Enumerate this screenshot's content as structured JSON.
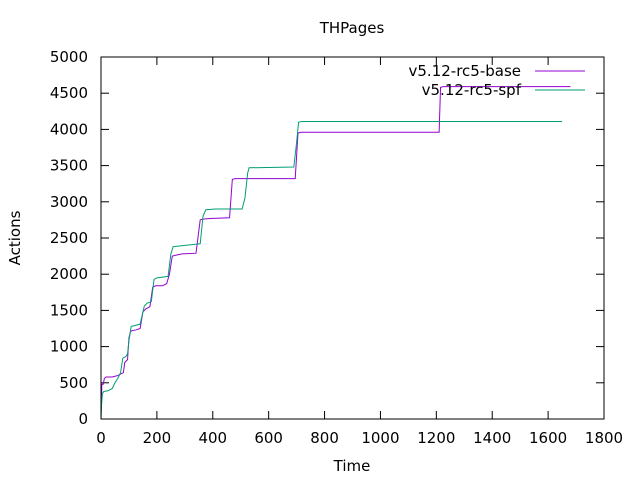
{
  "chart_data": {
    "type": "line",
    "title": "THPages",
    "xlabel": "Time",
    "ylabel": "Actions",
    "xlim": [
      0,
      1800
    ],
    "ylim": [
      0,
      5000
    ],
    "xticks": [
      0,
      200,
      400,
      600,
      800,
      1000,
      1200,
      1400,
      1600,
      1800
    ],
    "yticks": [
      0,
      500,
      1000,
      1500,
      2000,
      2500,
      3000,
      3500,
      4000,
      4500,
      5000
    ],
    "grid": false,
    "legend": "top-right",
    "series": [
      {
        "name": "v5.12-rc5-base",
        "color": "#9400d3",
        "points": [
          [
            0,
            0
          ],
          [
            3,
            480
          ],
          [
            8,
            480
          ],
          [
            12,
            560
          ],
          [
            18,
            580
          ],
          [
            40,
            580
          ],
          [
            50,
            590
          ],
          [
            60,
            600
          ],
          [
            70,
            620
          ],
          [
            80,
            640
          ],
          [
            85,
            780
          ],
          [
            95,
            820
          ],
          [
            100,
            1120
          ],
          [
            105,
            1200
          ],
          [
            110,
            1220
          ],
          [
            125,
            1230
          ],
          [
            140,
            1250
          ],
          [
            150,
            1480
          ],
          [
            160,
            1520
          ],
          [
            175,
            1550
          ],
          [
            185,
            1820
          ],
          [
            195,
            1840
          ],
          [
            220,
            1840
          ],
          [
            235,
            1870
          ],
          [
            245,
            2000
          ],
          [
            255,
            2250
          ],
          [
            265,
            2260
          ],
          [
            290,
            2280
          ],
          [
            340,
            2290
          ],
          [
            355,
            2750
          ],
          [
            365,
            2760
          ],
          [
            390,
            2770
          ],
          [
            460,
            2780
          ],
          [
            470,
            3310
          ],
          [
            480,
            3320
          ],
          [
            695,
            3320
          ],
          [
            705,
            3950
          ],
          [
            715,
            3960
          ],
          [
            1210,
            3960
          ],
          [
            1215,
            4580
          ],
          [
            1225,
            4590
          ],
          [
            1680,
            4590
          ]
        ]
      },
      {
        "name": "v5.12-rc5-spf",
        "color": "#009e73",
        "points": [
          [
            0,
            0
          ],
          [
            2,
            200
          ],
          [
            5,
            350
          ],
          [
            10,
            380
          ],
          [
            25,
            390
          ],
          [
            40,
            420
          ],
          [
            50,
            500
          ],
          [
            60,
            560
          ],
          [
            70,
            640
          ],
          [
            78,
            840
          ],
          [
            88,
            860
          ],
          [
            95,
            900
          ],
          [
            100,
            1080
          ],
          [
            108,
            1280
          ],
          [
            120,
            1290
          ],
          [
            140,
            1310
          ],
          [
            155,
            1560
          ],
          [
            165,
            1600
          ],
          [
            180,
            1620
          ],
          [
            190,
            1930
          ],
          [
            200,
            1950
          ],
          [
            240,
            1970
          ],
          [
            250,
            2280
          ],
          [
            258,
            2380
          ],
          [
            280,
            2390
          ],
          [
            330,
            2410
          ],
          [
            355,
            2420
          ],
          [
            365,
            2800
          ],
          [
            375,
            2890
          ],
          [
            410,
            2900
          ],
          [
            505,
            2900
          ],
          [
            515,
            3050
          ],
          [
            525,
            3400
          ],
          [
            530,
            3470
          ],
          [
            690,
            3480
          ],
          [
            700,
            3820
          ],
          [
            707,
            4100
          ],
          [
            720,
            4110
          ],
          [
            1650,
            4110
          ]
        ]
      }
    ]
  }
}
